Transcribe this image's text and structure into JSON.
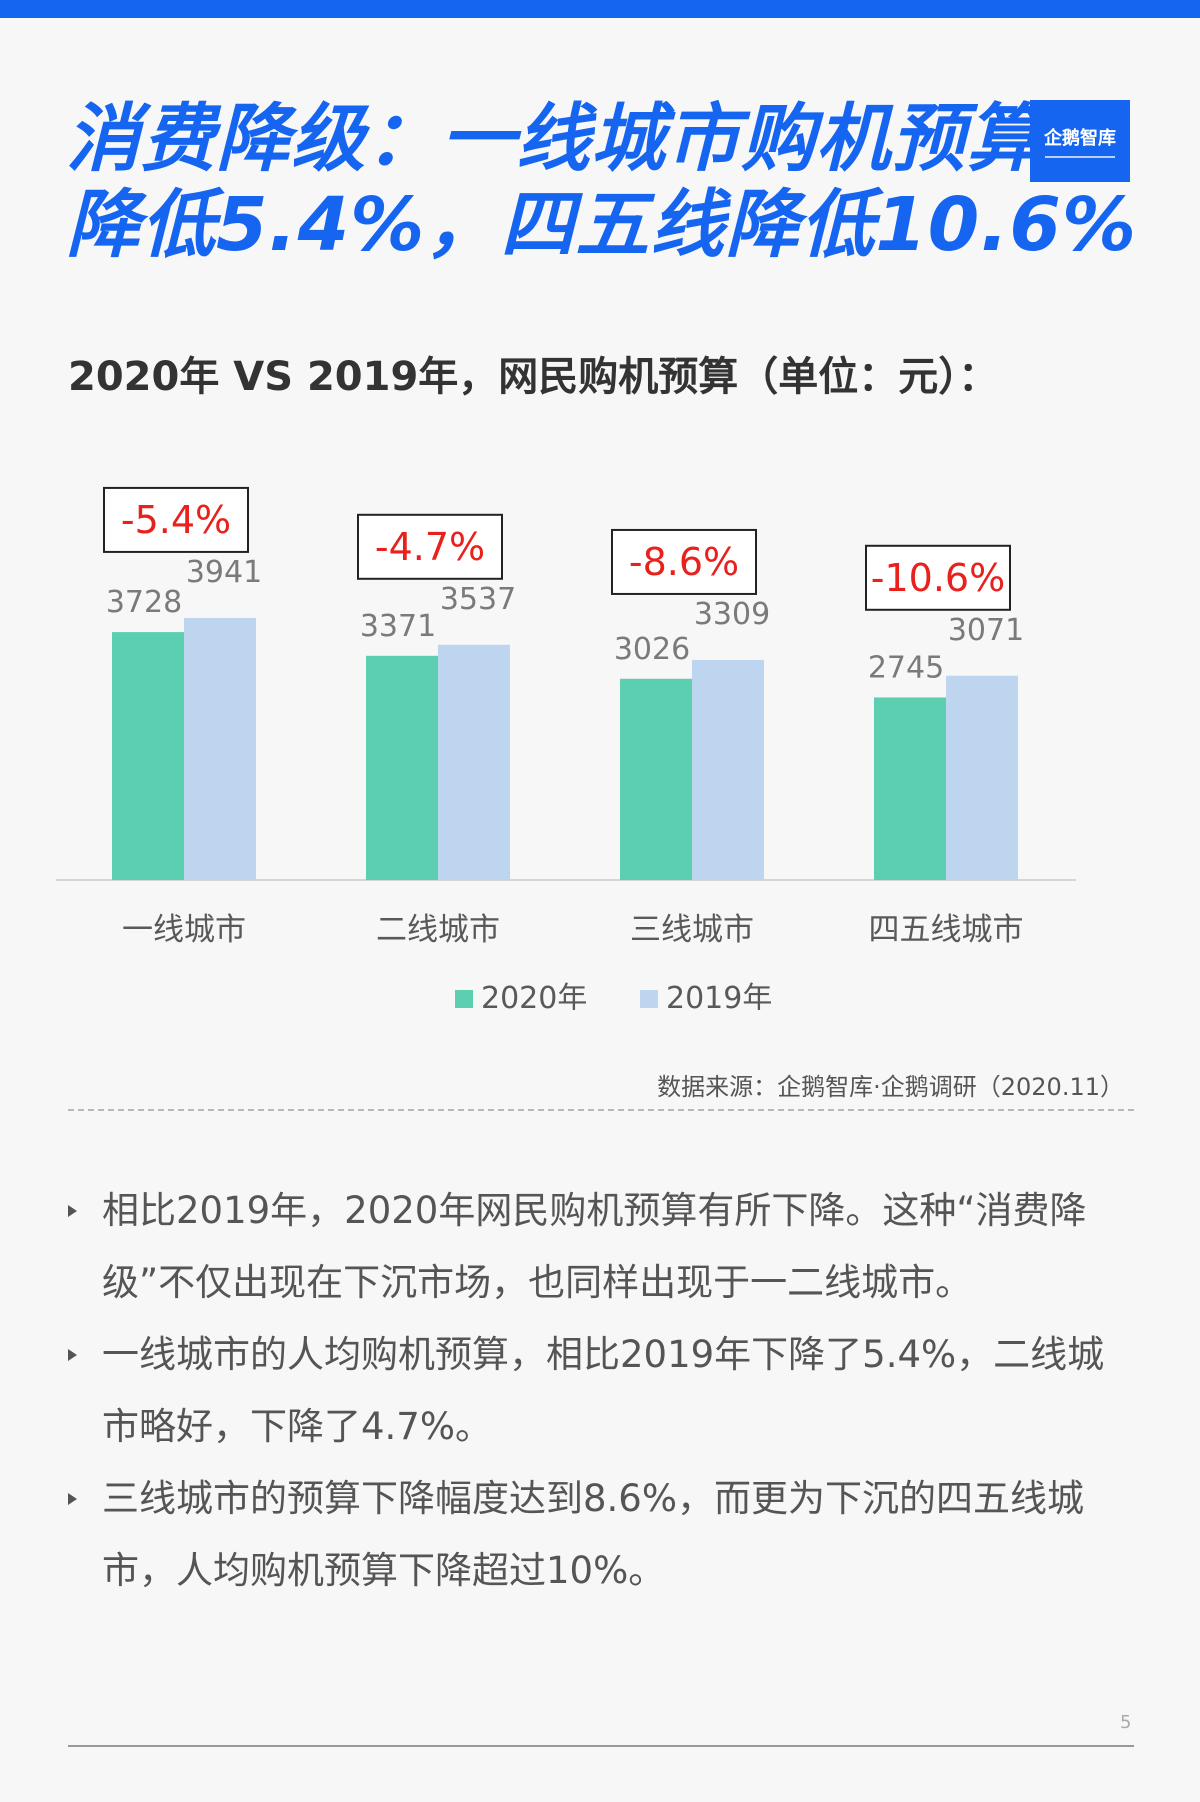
{
  "header": {
    "title_line1": "消费降级：一线城市购机预算",
    "title_line2": "降低5.4%，四五线降低10.6%",
    "brand_color": "#1565f0",
    "logo_text": "企鹅智库"
  },
  "chart_data": {
    "type": "bar",
    "title": "2020年 VS 2019年，网民购机预算（单位：元）：",
    "categories": [
      "一线城市",
      "二线城市",
      "三线城市",
      "四五线城市"
    ],
    "series": [
      {
        "name": "2020年",
        "values": [
          3728,
          3371,
          3026,
          2745
        ],
        "color": "#5dcfb1"
      },
      {
        "name": "2019年",
        "values": [
          3941,
          3537,
          3309,
          3071
        ],
        "color": "#bdd5ee"
      }
    ],
    "change_labels": [
      "-5.4%",
      "-4.7%",
      "-8.6%",
      "-10.6%"
    ],
    "change_label_color": "#e8211d",
    "legend_position": "bottom",
    "grid": false
  },
  "source": "数据来源：企鹅智库·企鹅调研（2020.11）",
  "bullets": [
    "相比2019年，2020年网民购机预算有所下降。这种“消费降级”不仅出现在下沉市场，也同样出现于一二线城市。",
    "一线城市的人均购机预算，相比2019年下降了5.4%，二线城市略好，下降了4.7%。",
    "三线城市的预算下降幅度达到8.6%，而更为下沉的四五线城市，人均购机预算下降超过10%。"
  ],
  "page_number": "5"
}
